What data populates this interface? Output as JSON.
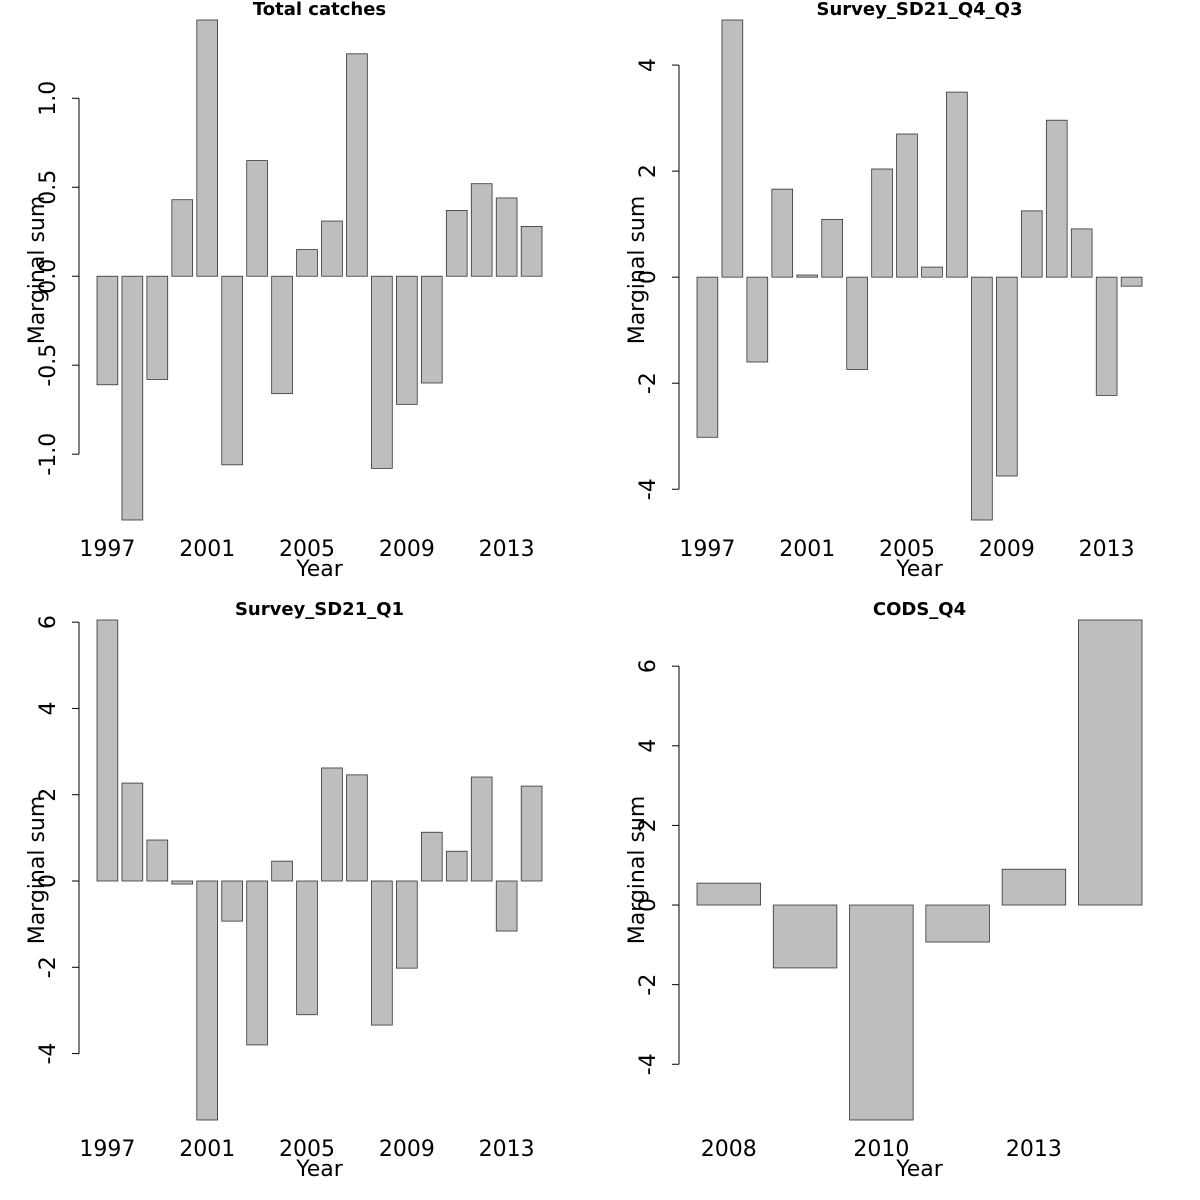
{
  "chart_data": [
    {
      "type": "bar",
      "title": "Total catches",
      "xlabel": "Year",
      "ylabel": "Marginal sum",
      "color": "#bebebe",
      "categories": [
        "1997",
        null,
        null,
        null,
        "2001",
        null,
        null,
        null,
        "2005",
        null,
        null,
        null,
        "2009",
        null,
        null,
        null,
        "2013",
        null
      ],
      "values": [
        -0.61,
        -1.37,
        -0.58,
        0.43,
        1.44,
        -1.06,
        0.65,
        -0.66,
        0.15,
        0.31,
        1.25,
        -1.08,
        -0.72,
        -0.6,
        0.37,
        0.52,
        0.44,
        0.28
      ],
      "ylim": [
        -1.37,
        1.44
      ],
      "yticks": [
        {
          "value": -1.0,
          "label": "-1.0"
        },
        {
          "value": -0.5,
          "label": "-0.5"
        },
        {
          "value": 0,
          "label": "0.0"
        },
        {
          "value": 0.5,
          "label": "0.5"
        },
        {
          "value": 1.0,
          "label": "1.0"
        }
      ]
    },
    {
      "type": "bar",
      "title": "Survey_SD21_Q4_Q3",
      "xlabel": "Year",
      "ylabel": "Marginal sum",
      "color": "#bebebe",
      "categories": [
        "1997",
        null,
        null,
        null,
        "2001",
        null,
        null,
        null,
        "2005",
        null,
        null,
        null,
        "2009",
        null,
        null,
        null,
        "2013",
        null
      ],
      "values": [
        -3.02,
        4.85,
        -1.6,
        1.66,
        0.04,
        1.09,
        -1.74,
        2.04,
        2.7,
        0.19,
        3.49,
        -4.58,
        -3.75,
        1.25,
        2.96,
        0.91,
        -2.23,
        -0.17
      ],
      "ylim": [
        -4.58,
        4.85
      ],
      "yticks": [
        -4,
        -2,
        0,
        2,
        4
      ]
    },
    {
      "type": "bar",
      "title": "Survey_SD21_Q1",
      "xlabel": "Year",
      "ylabel": "Marginal sum",
      "color": "#bebebe",
      "categories": [
        "1997",
        null,
        null,
        null,
        "2001",
        null,
        null,
        null,
        "2005",
        null,
        null,
        null,
        "2009",
        null,
        null,
        null,
        "2013",
        null
      ],
      "values": [
        6.05,
        2.27,
        0.95,
        -0.07,
        -5.54,
        -0.93,
        -3.8,
        0.46,
        -3.1,
        2.62,
        2.46,
        -3.34,
        -2.02,
        1.13,
        0.69,
        2.41,
        -1.16,
        2.2
      ],
      "ylim": [
        -5.54,
        6.05
      ],
      "yticks": [
        -4,
        -2,
        0,
        2,
        4,
        6
      ]
    },
    {
      "type": "bar",
      "title": "CODS_Q4",
      "xlabel": "Year",
      "ylabel": "Marginal sum",
      "color": "#bebebe",
      "categories": [
        "2008",
        null,
        "2010",
        null,
        "2013",
        null
      ],
      "values": [
        0.55,
        -1.58,
        -5.4,
        -0.93,
        0.9,
        7.16
      ],
      "ylim": [
        -5.4,
        7.16
      ],
      "yticks": [
        -4,
        -2,
        0,
        2,
        4,
        6
      ]
    }
  ]
}
